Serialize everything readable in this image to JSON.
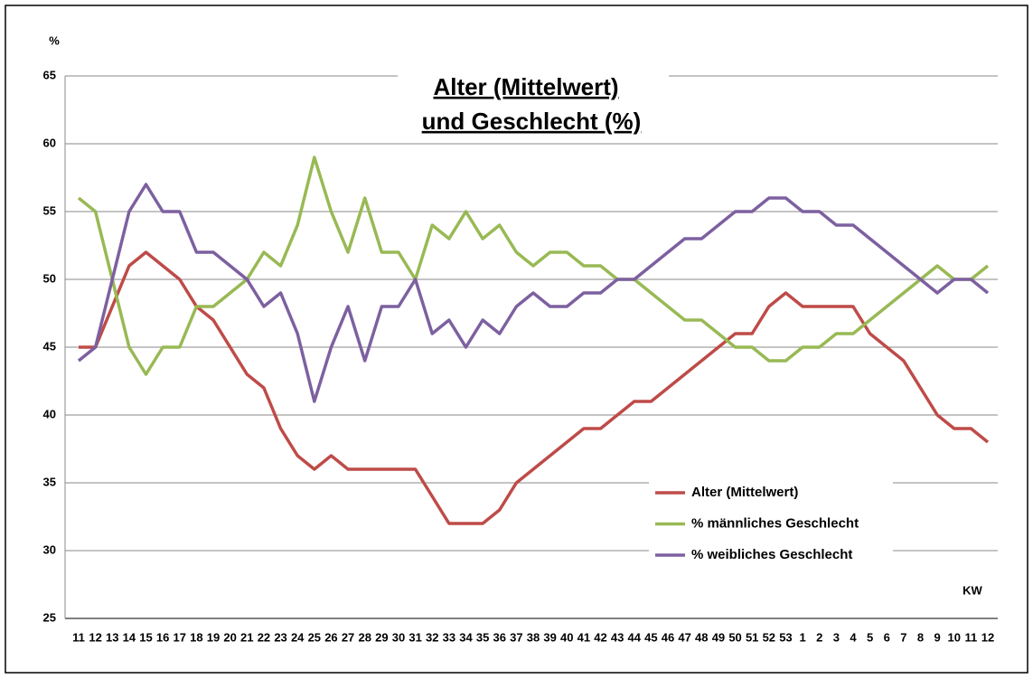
{
  "chart_data": {
    "type": "line",
    "title": [
      "Alter (Mittelwert)",
      "und Geschlecht (%)"
    ],
    "y_label": "%",
    "x_label": "KW",
    "categories": [
      "11",
      "12",
      "13",
      "14",
      "15",
      "16",
      "17",
      "18",
      "19",
      "20",
      "21",
      "22",
      "23",
      "24",
      "25",
      "26",
      "27",
      "28",
      "29",
      "30",
      "31",
      "32",
      "33",
      "34",
      "35",
      "36",
      "37",
      "38",
      "39",
      "40",
      "41",
      "42",
      "43",
      "44",
      "45",
      "46",
      "47",
      "48",
      "49",
      "50",
      "51",
      "52",
      "53",
      "1",
      "2",
      "3",
      "4",
      "5",
      "6",
      "7",
      "8",
      "9",
      "10",
      "11",
      "12"
    ],
    "series": [
      {
        "name": "Alter (Mittelwert)",
        "color": "#be4b48",
        "values": [
          45,
          45,
          48,
          51,
          52,
          51,
          50,
          48,
          47,
          45,
          43,
          42,
          39,
          37,
          36,
          37,
          36,
          36,
          36,
          36,
          36,
          34,
          32,
          32,
          32,
          33,
          35,
          36,
          37,
          38,
          39,
          39,
          40,
          41,
          41,
          42,
          43,
          44,
          45,
          46,
          46,
          48,
          49,
          48,
          48,
          48,
          48,
          46,
          45,
          44,
          42,
          40,
          39,
          39,
          38
        ]
      },
      {
        "name": "% männliches Geschlecht",
        "color": "#98b954",
        "values": [
          56,
          55,
          50,
          45,
          43,
          45,
          45,
          48,
          48,
          49,
          50,
          52,
          51,
          54,
          59,
          55,
          52,
          56,
          52,
          52,
          50,
          54,
          53,
          55,
          53,
          54,
          52,
          51,
          52,
          52,
          51,
          51,
          50,
          50,
          49,
          48,
          47,
          47,
          46,
          45,
          45,
          44,
          44,
          45,
          45,
          46,
          46,
          47,
          48,
          49,
          50,
          51,
          50,
          50,
          51
        ]
      },
      {
        "name": "% weibliches Geschlecht",
        "color": "#7d60a0",
        "values": [
          44,
          45,
          50,
          55,
          57,
          55,
          55,
          52,
          52,
          51,
          50,
          48,
          49,
          46,
          41,
          45,
          48,
          44,
          48,
          48,
          50,
          46,
          47,
          45,
          47,
          46,
          48,
          49,
          48,
          48,
          49,
          49,
          50,
          50,
          51,
          52,
          53,
          53,
          54,
          55,
          55,
          56,
          56,
          55,
          55,
          54,
          54,
          53,
          52,
          51,
          50,
          49,
          50,
          50,
          49
        ]
      }
    ],
    "ylim": [
      25,
      65
    ],
    "yticks": [
      25,
      30,
      35,
      40,
      45,
      50,
      55,
      60,
      65
    ],
    "grid": true,
    "legend": "lower right"
  }
}
